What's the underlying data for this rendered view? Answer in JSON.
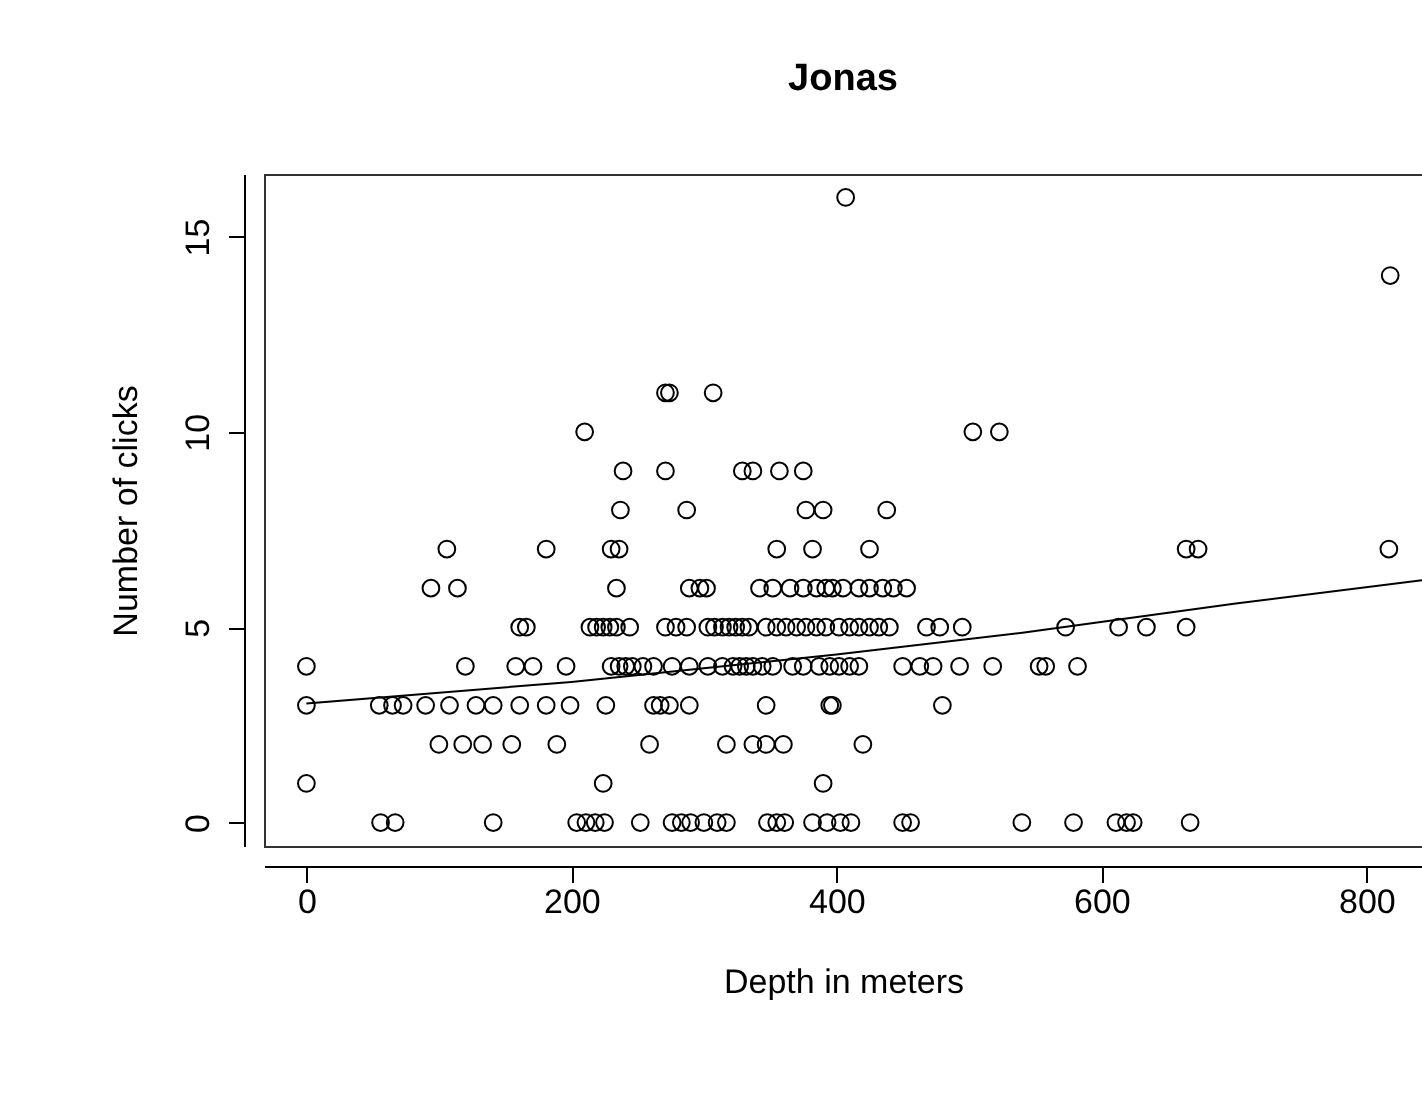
{
  "chart_data": {
    "type": "scatter",
    "title": "Jonas",
    "xlabel": "Depth in meters",
    "ylabel": "Number of clicks",
    "xlim": [
      -32,
      842
    ],
    "ylim": [
      -0.6,
      16.6
    ],
    "xticks": [
      0,
      200,
      400,
      600,
      800
    ],
    "yticks": [
      0,
      5,
      10,
      15
    ],
    "grid": false,
    "marker": "circle",
    "series": [
      {
        "color": "#000000",
        "x": [
          407,
          818,
          271,
          274,
          307,
          210,
          503,
          523,
          239,
          271,
          329,
          337,
          357,
          375,
          237,
          287,
          377,
          390,
          438,
          106,
          181,
          230,
          236,
          355,
          382,
          425,
          664,
          673,
          817,
          94,
          114,
          234,
          289,
          297,
          302,
          342,
          352,
          365,
          375,
          385,
          392,
          397,
          405,
          417,
          425,
          435,
          443,
          453,
          161,
          166,
          214,
          219,
          224,
          229,
          234,
          244,
          271,
          279,
          287,
          303,
          308,
          314,
          319,
          324,
          329,
          334,
          347,
          355,
          362,
          370,
          377,
          385,
          392,
          402,
          410,
          417,
          425,
          432,
          440,
          468,
          478,
          495,
          573,
          613,
          634,
          664,
          0,
          120,
          158,
          171,
          196,
          230,
          236,
          241,
          246,
          254,
          262,
          276,
          289,
          303,
          314,
          322,
          327,
          332,
          337,
          344,
          352,
          367,
          375,
          387,
          395,
          402,
          410,
          417,
          450,
          463,
          473,
          493,
          518,
          553,
          558,
          582,
          0,
          55,
          65,
          73,
          90,
          108,
          128,
          141,
          161,
          181,
          199,
          226,
          262,
          267,
          274,
          289,
          347,
          395,
          397,
          480,
          100,
          118,
          133,
          155,
          189,
          259,
          317,
          337,
          347,
          360,
          420,
          0,
          224,
          390,
          56,
          67,
          141,
          204,
          211,
          218,
          225,
          252,
          276,
          283,
          290,
          300,
          310,
          317,
          348,
          355,
          361,
          382,
          393,
          403,
          411,
          450,
          456,
          540,
          579,
          611,
          619,
          624,
          667
        ],
        "values": [
          16,
          14,
          11,
          11,
          11,
          10,
          10,
          10,
          9,
          9,
          9,
          9,
          9,
          9,
          8,
          8,
          8,
          8,
          8,
          7,
          7,
          7,
          7,
          7,
          7,
          7,
          7,
          7,
          7,
          6,
          6,
          6,
          6,
          6,
          6,
          6,
          6,
          6,
          6,
          6,
          6,
          6,
          6,
          6,
          6,
          6,
          6,
          6,
          5,
          5,
          5,
          5,
          5,
          5,
          5,
          5,
          5,
          5,
          5,
          5,
          5,
          5,
          5,
          5,
          5,
          5,
          5,
          5,
          5,
          5,
          5,
          5,
          5,
          5,
          5,
          5,
          5,
          5,
          5,
          5,
          5,
          5,
          5,
          5,
          5,
          5,
          4,
          4,
          4,
          4,
          4,
          4,
          4,
          4,
          4,
          4,
          4,
          4,
          4,
          4,
          4,
          4,
          4,
          4,
          4,
          4,
          4,
          4,
          4,
          4,
          4,
          4,
          4,
          4,
          4,
          4,
          4,
          4,
          4,
          4,
          4,
          4,
          3,
          3,
          3,
          3,
          3,
          3,
          3,
          3,
          3,
          3,
          3,
          3,
          3,
          3,
          3,
          3,
          3,
          3,
          3,
          3,
          2,
          2,
          2,
          2,
          2,
          2,
          2,
          2,
          2,
          2,
          2,
          1,
          1,
          1,
          0,
          0,
          0,
          0,
          0,
          0,
          0,
          0,
          0,
          0,
          0,
          0,
          0,
          0,
          0,
          0,
          0,
          0,
          0,
          0,
          0,
          0,
          0,
          0,
          0,
          0,
          0,
          0,
          0
        ]
      },
      {
        "type": "line",
        "color": "#000000",
        "line_style": "solid",
        "marker": "none",
        "x": [
          0,
          200,
          400,
          539,
          700,
          842
        ],
        "values": [
          3.05,
          3.6,
          4.3,
          4.85,
          5.6,
          6.2
        ]
      }
    ]
  }
}
